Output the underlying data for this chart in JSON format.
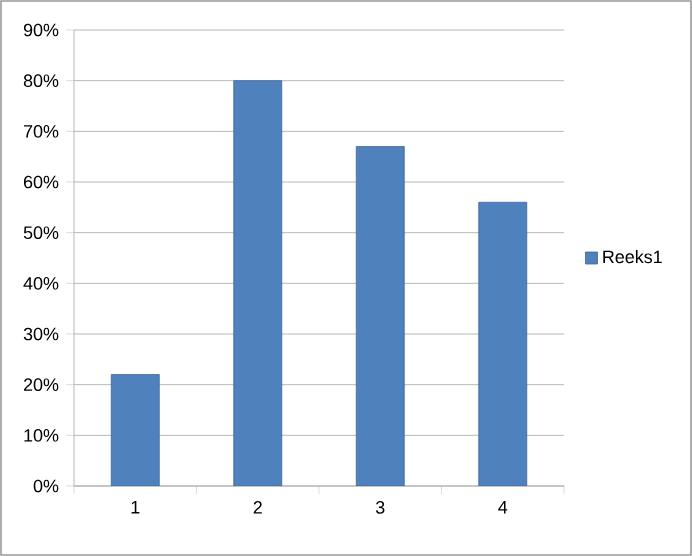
{
  "chart_data": {
    "type": "bar",
    "categories": [
      "1",
      "2",
      "3",
      "4"
    ],
    "series": [
      {
        "name": "Reeks1",
        "color": "#4f81bd",
        "values": [
          22,
          80,
          67,
          56
        ]
      }
    ],
    "ylim": [
      0,
      90
    ],
    "yticks": [
      {
        "value": 0,
        "label": "0%"
      },
      {
        "value": 10,
        "label": "10%"
      },
      {
        "value": 20,
        "label": "20%"
      },
      {
        "value": 30,
        "label": "30%"
      },
      {
        "value": 40,
        "label": "40%"
      },
      {
        "value": 50,
        "label": "50%"
      },
      {
        "value": 60,
        "label": "60%"
      },
      {
        "value": 70,
        "label": "70%"
      },
      {
        "value": 80,
        "label": "80%"
      },
      {
        "value": 90,
        "label": "90%"
      }
    ],
    "grid": "y",
    "legend": "right"
  }
}
